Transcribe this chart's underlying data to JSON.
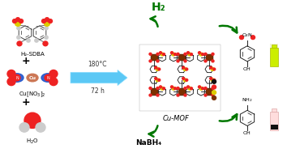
{
  "background_color": "#ffffff",
  "green_color": "#1a8a1a",
  "blue_color": "#5bc8f5",
  "dark_green": "#007700",
  "arrow_180": "180°C",
  "arrow_72h": "72 h",
  "label_h2sdba": "H₂-SDBA",
  "label_cu": "Cu[NO₃]₂",
  "label_h2o": "H₂O",
  "label_h2": "H₂",
  "label_nabh4": "NaBH₄",
  "label_cumof": "Cu-MOF",
  "label_oh": "OH",
  "label_no2": "O₂N",
  "label_nh2": "NH₂",
  "brown": "#7B3000",
  "dark_red": "#cc0000",
  "red": "#ee2222",
  "blue_mol": "#2244cc",
  "copper": "#cc6633",
  "yellow_green": "#ccee00",
  "pink_vial": "#ffaaaa",
  "gray": "#888888",
  "black": "#111111",
  "white": "#ffffff",
  "light_gray": "#cccccc"
}
